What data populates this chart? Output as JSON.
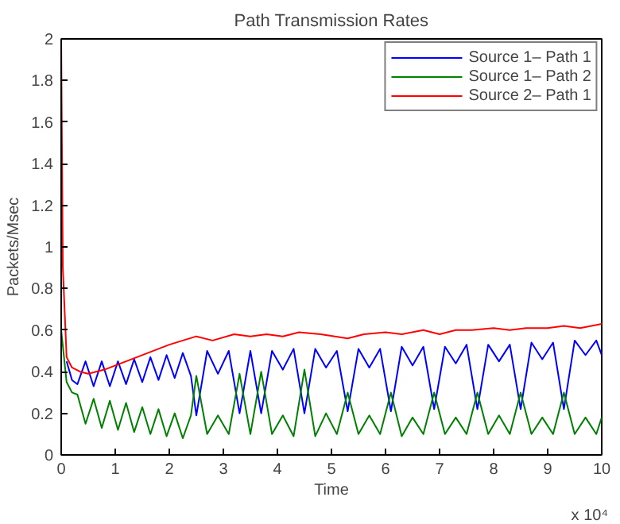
{
  "chart_data": {
    "type": "line",
    "title": "Path Transmission Rates",
    "xlabel": "Time",
    "ylabel": "Packets/Msec",
    "annotations": [
      "x 10⁴"
    ],
    "xlim": [
      0,
      10
    ],
    "ylim": [
      0,
      2
    ],
    "xticks": [
      0,
      1,
      2,
      3,
      4,
      5,
      6,
      7,
      8,
      9,
      10
    ],
    "yticks": [
      0,
      0.2,
      0.4,
      0.6,
      0.8,
      1,
      1.2,
      1.4,
      1.6,
      1.8,
      2
    ],
    "grid": false,
    "legend": "top right",
    "marker": "none",
    "line_style": "solid",
    "series": [
      {
        "name": "Source 1– Path 1",
        "color": "#0000ff",
        "x": [
          0.1,
          0.2,
          0.3,
          0.45,
          0.6,
          0.75,
          0.9,
          1.05,
          1.2,
          1.35,
          1.5,
          1.65,
          1.8,
          1.95,
          2.1,
          2.25,
          2.4,
          2.5,
          2.7,
          2.9,
          3.1,
          3.3,
          3.5,
          3.7,
          3.9,
          4.1,
          4.3,
          4.5,
          4.7,
          4.9,
          5.1,
          5.3,
          5.5,
          5.7,
          5.9,
          6.1,
          6.3,
          6.5,
          6.7,
          6.9,
          7.1,
          7.3,
          7.5,
          7.7,
          7.9,
          8.1,
          8.3,
          8.5,
          8.7,
          8.9,
          9.1,
          9.3,
          9.5,
          9.7,
          9.9,
          10
        ],
        "values": [
          0.45,
          0.36,
          0.34,
          0.45,
          0.33,
          0.45,
          0.33,
          0.45,
          0.34,
          0.46,
          0.35,
          0.47,
          0.36,
          0.48,
          0.37,
          0.49,
          0.38,
          0.19,
          0.5,
          0.39,
          0.5,
          0.2,
          0.5,
          0.2,
          0.5,
          0.41,
          0.51,
          0.2,
          0.51,
          0.42,
          0.5,
          0.21,
          0.51,
          0.42,
          0.51,
          0.21,
          0.52,
          0.43,
          0.52,
          0.22,
          0.52,
          0.44,
          0.53,
          0.22,
          0.53,
          0.45,
          0.53,
          0.22,
          0.54,
          0.46,
          0.54,
          0.22,
          0.55,
          0.48,
          0.55,
          0.48
        ]
      },
      {
        "name": "Source 1– Path 2",
        "color": "#008000",
        "x": [
          0,
          0.1,
          0.2,
          0.3,
          0.45,
          0.6,
          0.75,
          0.9,
          1.05,
          1.2,
          1.35,
          1.5,
          1.65,
          1.8,
          1.95,
          2.1,
          2.25,
          2.4,
          2.5,
          2.7,
          2.9,
          3.1,
          3.3,
          3.5,
          3.7,
          3.9,
          4.1,
          4.3,
          4.5,
          4.7,
          4.9,
          5.1,
          5.3,
          5.5,
          5.7,
          5.9,
          6.1,
          6.3,
          6.5,
          6.7,
          6.9,
          7.1,
          7.3,
          7.5,
          7.7,
          7.9,
          8.1,
          8.3,
          8.5,
          8.7,
          8.9,
          9.1,
          9.3,
          9.5,
          9.7,
          9.9,
          10
        ],
        "values": [
          0.6,
          0.35,
          0.3,
          0.29,
          0.15,
          0.27,
          0.13,
          0.26,
          0.12,
          0.25,
          0.11,
          0.23,
          0.1,
          0.22,
          0.09,
          0.2,
          0.08,
          0.19,
          0.38,
          0.1,
          0.19,
          0.1,
          0.39,
          0.1,
          0.4,
          0.1,
          0.19,
          0.09,
          0.41,
          0.09,
          0.2,
          0.1,
          0.3,
          0.1,
          0.19,
          0.1,
          0.3,
          0.09,
          0.18,
          0.1,
          0.3,
          0.1,
          0.18,
          0.1,
          0.3,
          0.1,
          0.19,
          0.1,
          0.3,
          0.1,
          0.18,
          0.1,
          0.3,
          0.1,
          0.18,
          0.1,
          0.18
        ]
      },
      {
        "name": "Source 2– Path 1",
        "color": "#ff0000",
        "x": [
          0,
          0.03,
          0.1,
          0.2,
          0.35,
          0.5,
          0.8,
          1.2,
          1.6,
          2,
          2.5,
          2.8,
          3.2,
          3.5,
          3.8,
          4.1,
          4.4,
          4.8,
          5.3,
          5.6,
          6,
          6.3,
          6.7,
          7,
          7.3,
          7.6,
          8,
          8.3,
          8.6,
          9,
          9.3,
          9.6,
          10
        ],
        "values": [
          2,
          0.9,
          0.47,
          0.42,
          0.4,
          0.39,
          0.41,
          0.45,
          0.49,
          0.53,
          0.57,
          0.55,
          0.58,
          0.57,
          0.58,
          0.57,
          0.59,
          0.58,
          0.56,
          0.58,
          0.59,
          0.58,
          0.6,
          0.58,
          0.6,
          0.6,
          0.61,
          0.6,
          0.61,
          0.61,
          0.62,
          0.61,
          0.63
        ]
      }
    ]
  }
}
